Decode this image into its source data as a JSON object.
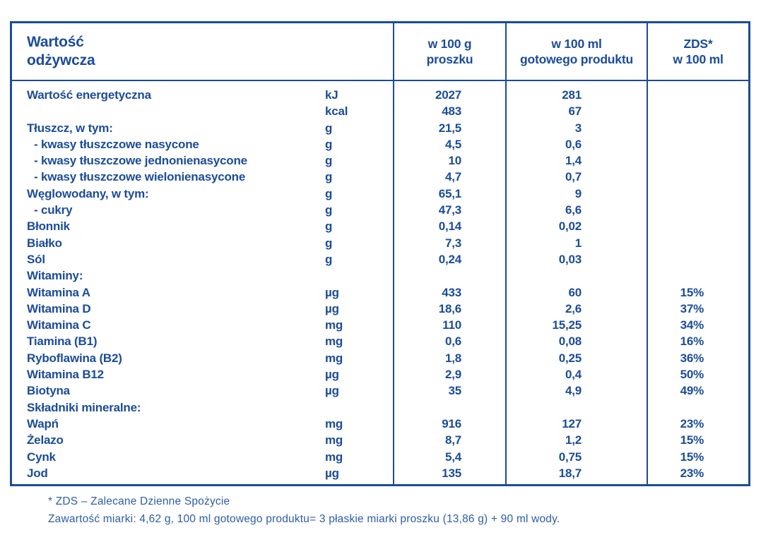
{
  "colors": {
    "brand_blue": "#1b4c9a",
    "footnote_blue": "#2e5ca8",
    "background": "#ffffff"
  },
  "table": {
    "header": {
      "nutrition_label": "Wartość\nodżywcza",
      "per_100g": "w 100 g\nproszku",
      "per_100ml": "w 100 ml\ngotowego produktu",
      "zds": "ZDS*\nw 100 ml"
    },
    "rows": [
      {
        "name": "Wartość energetyczna",
        "unit": "kJ",
        "per_100g": "2027",
        "per_100ml": "281",
        "zds": "",
        "indent": false
      },
      {
        "name": "",
        "unit": "kcal",
        "per_100g": "483",
        "per_100ml": "67",
        "zds": "",
        "indent": false
      },
      {
        "name": "Tłuszcz, w tym:",
        "unit": "g",
        "per_100g": "21,5",
        "per_100ml": "3",
        "zds": "",
        "indent": false
      },
      {
        "name": "- kwasy tłuszczowe nasycone",
        "unit": "g",
        "per_100g": "4,5",
        "per_100ml": "0,6",
        "zds": "",
        "indent": true
      },
      {
        "name": "- kwasy tłuszczowe jednonienasycone",
        "unit": "g",
        "per_100g": "10",
        "per_100ml": "1,4",
        "zds": "",
        "indent": true
      },
      {
        "name": "- kwasy tłuszczowe wielonienasycone",
        "unit": "g",
        "per_100g": "4,7",
        "per_100ml": "0,7",
        "zds": "",
        "indent": true
      },
      {
        "name": "Węglowodany, w tym:",
        "unit": "g",
        "per_100g": "65,1",
        "per_100ml": "9",
        "zds": "",
        "indent": false
      },
      {
        "name": "- cukry",
        "unit": "g",
        "per_100g": "47,3",
        "per_100ml": "6,6",
        "zds": "",
        "indent": true
      },
      {
        "name": "Błonnik",
        "unit": "g",
        "per_100g": "0,14",
        "per_100ml": "0,02",
        "zds": "",
        "indent": false
      },
      {
        "name": "Białko",
        "unit": "g",
        "per_100g": "7,3",
        "per_100ml": "1",
        "zds": "",
        "indent": false
      },
      {
        "name": "Sól",
        "unit": "g",
        "per_100g": "0,24",
        "per_100ml": "0,03",
        "zds": "",
        "indent": false
      },
      {
        "name": "Witaminy:",
        "unit": "",
        "per_100g": "",
        "per_100ml": "",
        "zds": "",
        "indent": false
      },
      {
        "name": "Witamina A",
        "unit": "µg",
        "per_100g": "433",
        "per_100ml": "60",
        "zds": "15%",
        "indent": false
      },
      {
        "name": "Witamina D",
        "unit": "µg",
        "per_100g": "18,6",
        "per_100ml": "2,6",
        "zds": "37%",
        "indent": false
      },
      {
        "name": "Witamina C",
        "unit": "mg",
        "per_100g": "110",
        "per_100ml": "15,25",
        "zds": "34%",
        "indent": false
      },
      {
        "name": "Tiamina (B1)",
        "unit": "mg",
        "per_100g": "0,6",
        "per_100ml": "0,08",
        "zds": "16%",
        "indent": false
      },
      {
        "name": "Ryboflawina (B2)",
        "unit": "mg",
        "per_100g": "1,8",
        "per_100ml": "0,25",
        "zds": "36%",
        "indent": false
      },
      {
        "name": "Witamina B12",
        "unit": "µg",
        "per_100g": "2,9",
        "per_100ml": "0,4",
        "zds": "50%",
        "indent": false
      },
      {
        "name": "Biotyna",
        "unit": "µg",
        "per_100g": "35",
        "per_100ml": "4,9",
        "zds": "49%",
        "indent": false
      },
      {
        "name": "Składniki mineralne:",
        "unit": "",
        "per_100g": "",
        "per_100ml": "",
        "zds": "",
        "indent": false
      },
      {
        "name": "Wapń",
        "unit": "mg",
        "per_100g": "916",
        "per_100ml": "127",
        "zds": "23%",
        "indent": false
      },
      {
        "name": "Żelazo",
        "unit": "mg",
        "per_100g": "8,7",
        "per_100ml": "1,2",
        "zds": "15%",
        "indent": false
      },
      {
        "name": "Cynk",
        "unit": "mg",
        "per_100g": "5,4",
        "per_100ml": "0,75",
        "zds": "15%",
        "indent": false
      },
      {
        "name": "Jod",
        "unit": "µg",
        "per_100g": "135",
        "per_100ml": "18,7",
        "zds": "23%",
        "indent": false
      }
    ]
  },
  "footnotes": {
    "zds_definition": "* ZDS – Zalecane Dzienne Spożycie",
    "scoop_info": "Zawartość miarki: 4,62 g, 100 ml gotowego produktu= 3 płaskie miarki proszku (13,86 g) + 90 ml wody."
  }
}
